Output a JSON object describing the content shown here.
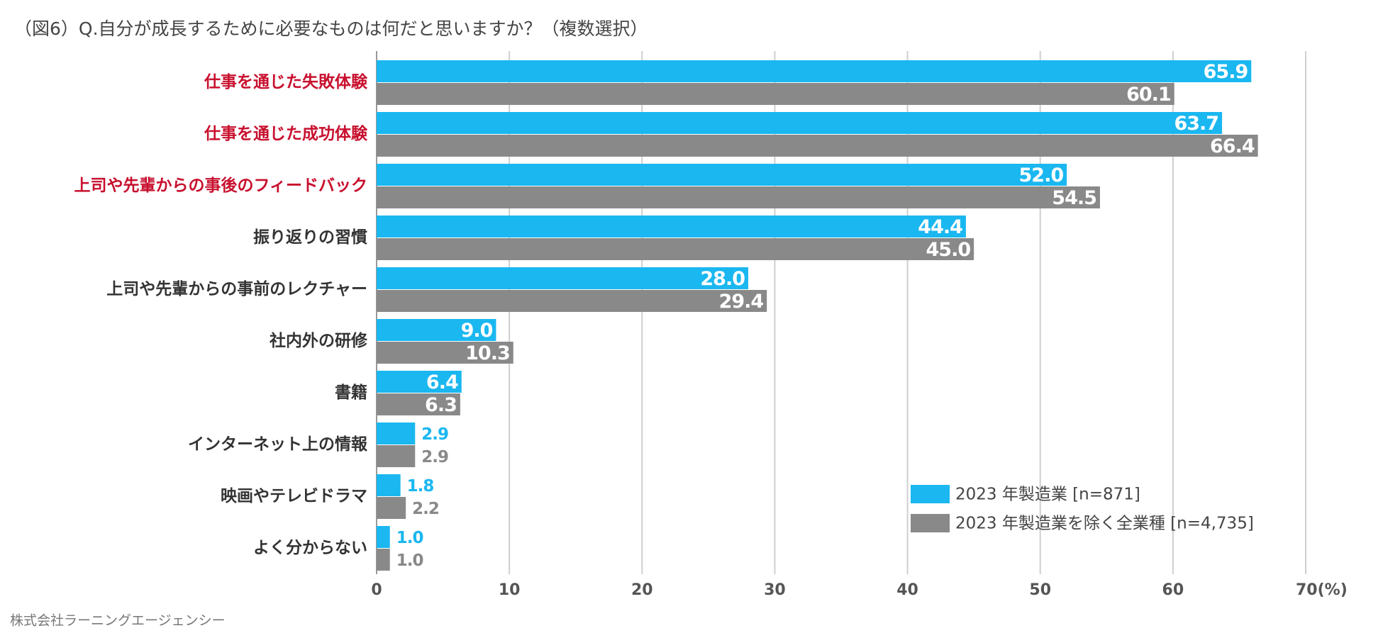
{
  "chart_data": {
    "type": "bar",
    "orientation": "horizontal",
    "title": "（図6）Q.自分が成長するために必要なものは何だと思いますか？（複数選択）",
    "source": "株式会社ラーニングエージェンシー",
    "categories": [
      "仕事を通じた失敗体験",
      "仕事を通じた成功体験",
      "上司や先輩からの事後のフィードバック",
      "振り返りの習慣",
      "上司や先輩からの事前のレクチャー",
      "社内外の研修",
      "書籍",
      "インターネット上の情報",
      "映画やテレビドラマ",
      "よく分からない"
    ],
    "category_label_colors": [
      "#c8102e",
      "#c8102e",
      "#c8102e",
      "#333333",
      "#333333",
      "#333333",
      "#333333",
      "#333333",
      "#333333",
      "#333333"
    ],
    "series": [
      {
        "name": "2023 年製造業 [n=871]",
        "color": "#1ab7f0",
        "values": [
          65.9,
          63.7,
          52,
          44.4,
          28,
          9,
          6.4,
          2.9,
          1.8,
          1
        ],
        "value_labels": [
          "65.9",
          "63.7",
          "52.0",
          "44.4",
          "28.0",
          "9.0",
          "6.4",
          "2.9",
          "1.8",
          "1.0"
        ]
      },
      {
        "name": "2023 年製造業を除く全業種 [n=4,735]",
        "color": "#898989",
        "values": [
          60.1,
          66.4,
          54.5,
          45,
          29.4,
          10.3,
          6.3,
          2.9,
          2.2,
          1
        ],
        "value_labels": [
          "60.1",
          "66.4",
          "54.5",
          "45.0",
          "29.4",
          "10.3",
          "6.3",
          "2.9",
          "2.2",
          "1.0"
        ]
      }
    ],
    "xlim": [
      0,
      70
    ],
    "xticks": [
      0,
      10,
      20,
      30,
      40,
      50,
      60,
      {
        "value": 70,
        "label": "70(%)"
      }
    ],
    "grid": true,
    "legend": "lower right"
  }
}
